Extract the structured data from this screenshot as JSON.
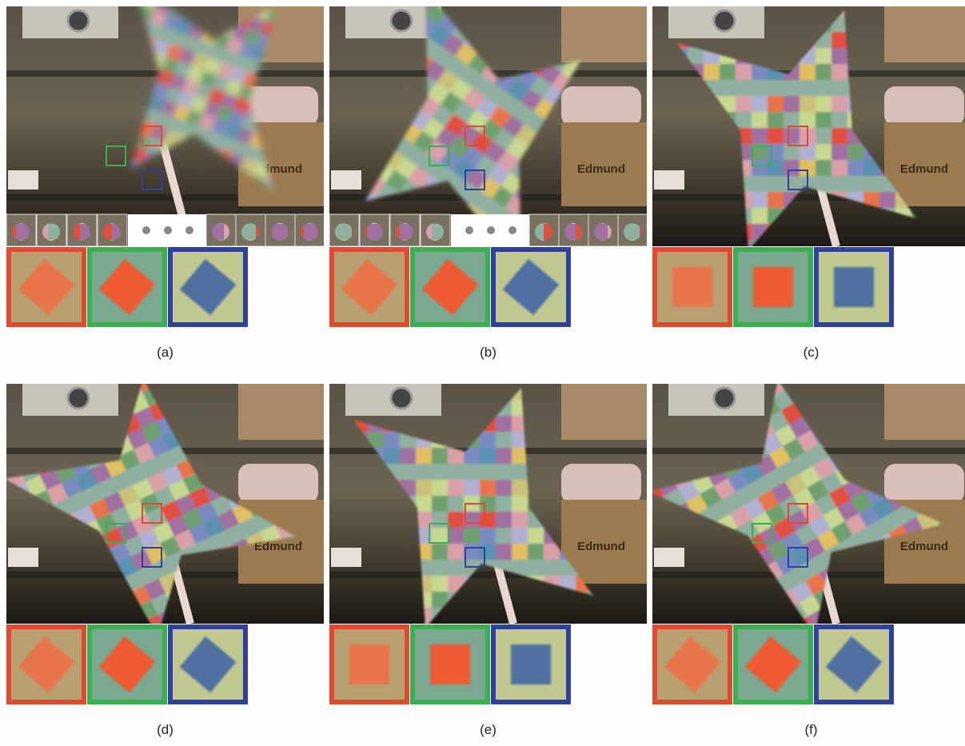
{
  "captions": [
    "(a)",
    "(b)",
    "(c)",
    "(d)",
    "(e)",
    "(f)"
  ],
  "box_label": "Edmund"
}
